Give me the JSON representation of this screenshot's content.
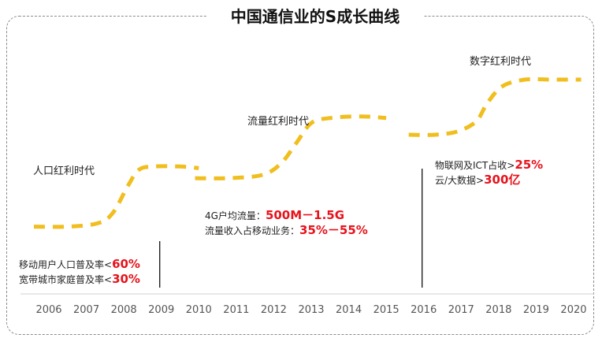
{
  "title": "中国通信业的S成长曲线",
  "chart_data": {
    "type": "line",
    "title": "中国通信业的S成长曲线",
    "xlabel": "",
    "ylabel": "",
    "x": [
      "2006",
      "2007",
      "2008",
      "2009",
      "2010",
      "2011",
      "2012",
      "2013",
      "2014",
      "2015",
      "2016",
      "2017",
      "2018",
      "2019",
      "2020"
    ],
    "xlim": [
      2005.4,
      2020.5
    ],
    "ylim": [
      0,
      100
    ],
    "grid": false,
    "line_style": "dashed",
    "line_color": "#F0BE1E",
    "series": [
      {
        "name": "人口红利时代",
        "points": [
          [
            2005.6,
            20
          ],
          [
            2006.5,
            20
          ],
          [
            2007.3,
            22
          ],
          [
            2007.7,
            28
          ],
          [
            2008.1,
            44
          ],
          [
            2008.4,
            54
          ],
          [
            2008.8,
            56
          ],
          [
            2009.5,
            56
          ],
          [
            2010.0,
            55
          ]
        ]
      },
      {
        "name": "流量红利时代",
        "points": [
          [
            2009.9,
            49
          ],
          [
            2010.8,
            49
          ],
          [
            2011.7,
            51
          ],
          [
            2012.2,
            58
          ],
          [
            2012.6,
            70
          ],
          [
            2013.0,
            82
          ],
          [
            2013.5,
            85
          ],
          [
            2014.3,
            86
          ],
          [
            2015.0,
            85
          ]
        ]
      },
      {
        "name": "数字红利时代",
        "points": [
          [
            2015.6,
            75
          ],
          [
            2016.3,
            75
          ],
          [
            2016.9,
            77
          ],
          [
            2017.4,
            83
          ],
          [
            2017.7,
            94
          ],
          [
            2018.1,
            104
          ],
          [
            2018.7,
            108
          ],
          [
            2019.4,
            108
          ],
          [
            2020.2,
            108
          ]
        ]
      }
    ],
    "dividers": [
      "2009",
      "2016"
    ],
    "annotations": [
      {
        "era": "人口红利时代",
        "lines": [
          {
            "text": "移动用户人口普及率<",
            "value": "60%"
          },
          {
            "text": "宽带城市家庭普及率<",
            "value": "30%"
          }
        ]
      },
      {
        "era": "流量红利时代",
        "lines": [
          {
            "text": "4G户均流量：",
            "value": "500M－1.5G"
          },
          {
            "text": "流量收入占移动业务：",
            "value": "35%－55%"
          }
        ]
      },
      {
        "era": "数字红利时代",
        "lines": [
          {
            "text": "物联网及ICT占收>",
            "value": "25%"
          },
          {
            "text": "云/大数据>",
            "value": "300亿"
          }
        ]
      }
    ]
  },
  "eras": [
    {
      "label": "人口红利时代"
    },
    {
      "label": "流量红利时代"
    },
    {
      "label": "数字红利时代"
    }
  ],
  "notes": {
    "population": {
      "line1_text": "移动用户人口普及率<",
      "line1_value": "60%",
      "line2_text": "宽带城市家庭普及率<",
      "line2_value": "30%"
    },
    "traffic": {
      "line1_text": "4G户均流量：",
      "line1_value": "500M－1.5G",
      "line2_text": "流量收入占移动业务：",
      "line2_value": "35%－55%"
    },
    "digital": {
      "line1_text": "物联网及ICT占收>",
      "line1_value": "25%",
      "line2_text": "云/大数据>",
      "line2_value": "300亿"
    }
  },
  "colors": {
    "curve": "#F0BE1E",
    "highlight": "#E8121B",
    "frame": "#8A8A8A",
    "axis": "#D0D0D0"
  }
}
